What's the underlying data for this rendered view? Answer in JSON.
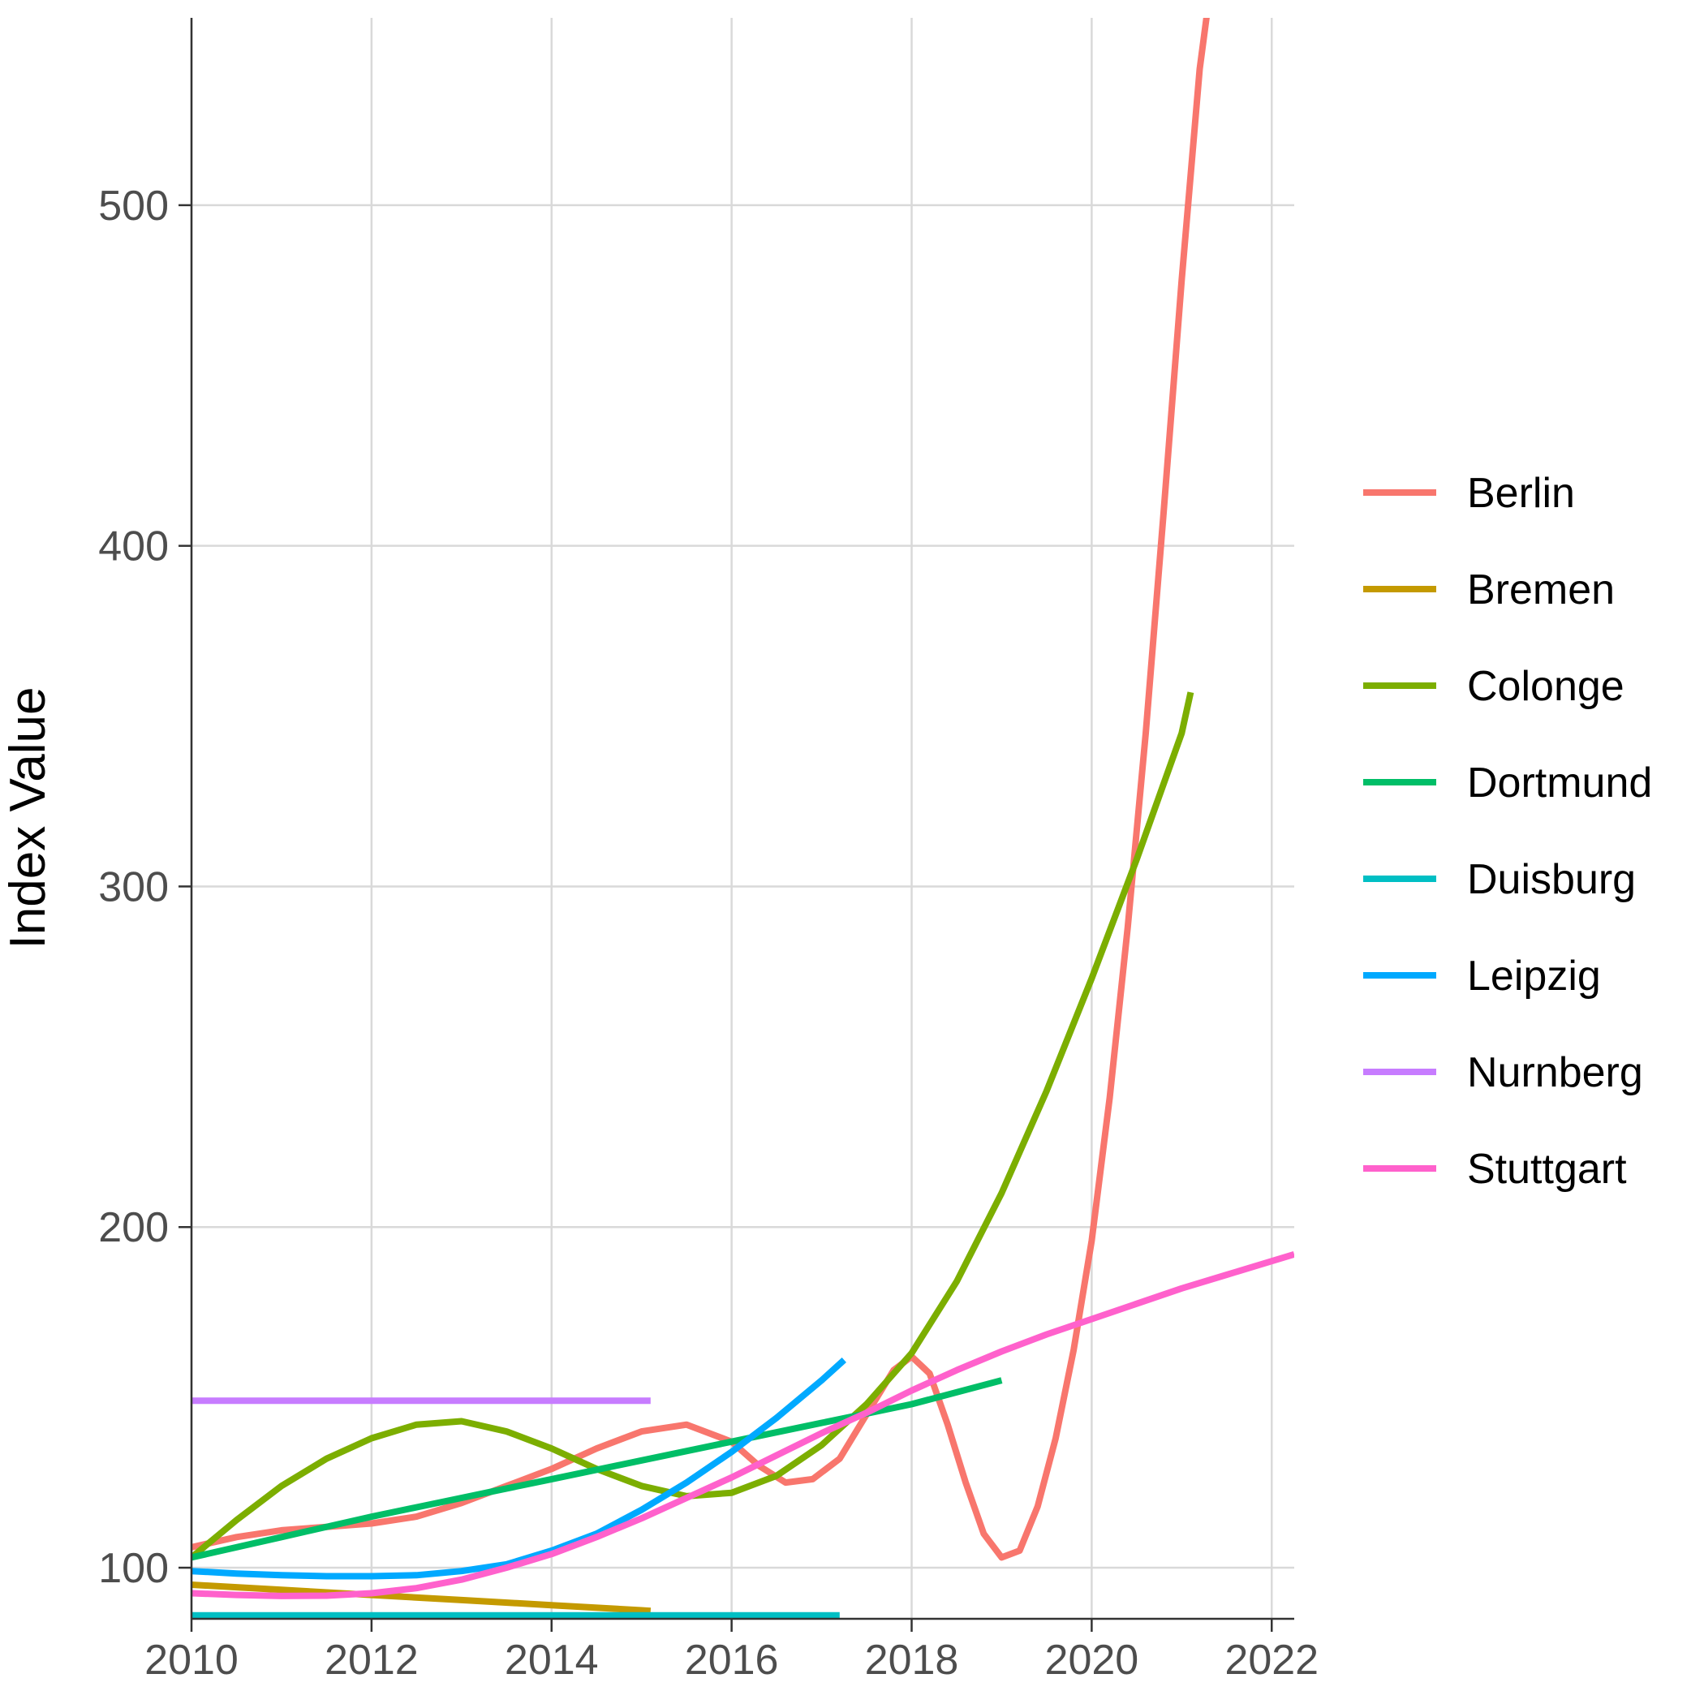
{
  "chart_data": {
    "type": "line",
    "title": "",
    "xlabel": "",
    "ylabel": "Index Value",
    "xlim": [
      2010,
      2022.25
    ],
    "ylim": [
      85,
      555
    ],
    "x_ticks": [
      2010,
      2012,
      2014,
      2016,
      2018,
      2020,
      2022
    ],
    "y_ticks": [
      100,
      200,
      300,
      400,
      500
    ],
    "grid": true,
    "legend_position": "right",
    "series": [
      {
        "name": "Berlin",
        "color": "#F8766D",
        "x": [
          2010,
          2010.5,
          2011,
          2011.5,
          2012,
          2012.5,
          2013,
          2013.5,
          2014,
          2014.5,
          2015,
          2015.5,
          2016,
          2016.3,
          2016.6,
          2016.9,
          2017.2,
          2017.5,
          2017.8,
          2018,
          2018.2,
          2018.4,
          2018.6,
          2018.8,
          2019,
          2019.2,
          2019.4,
          2019.6,
          2019.8,
          2020,
          2020.2,
          2020.4,
          2020.6,
          2020.8,
          2021,
          2021.2,
          2021.3
        ],
        "y": [
          106,
          109,
          111,
          112,
          113,
          115,
          119,
          124,
          129,
          135,
          140,
          142,
          137,
          130,
          125,
          126,
          132,
          145,
          158,
          162,
          157,
          142,
          125,
          110,
          103,
          105,
          118,
          138,
          164,
          196,
          238,
          288,
          345,
          410,
          478,
          540,
          560
        ]
      },
      {
        "name": "Bremen",
        "color": "#C49A00",
        "x": [
          2010,
          2011,
          2012,
          2013,
          2014,
          2015,
          2015.1
        ],
        "y": [
          95,
          93.5,
          92,
          90.5,
          89,
          87.5,
          87.3
        ]
      },
      {
        "name": "Colonge",
        "color": "#7CAE00",
        "x": [
          2010,
          2010.5,
          2011,
          2011.5,
          2012,
          2012.5,
          2013,
          2013.5,
          2014,
          2014.5,
          2015,
          2015.5,
          2016,
          2016.5,
          2017,
          2017.5,
          2018,
          2018.5,
          2019,
          2019.5,
          2020,
          2020.5,
          2021,
          2021.1
        ],
        "y": [
          103,
          114,
          124,
          132,
          138,
          142,
          143,
          140,
          135,
          129,
          124,
          121,
          122,
          127,
          136,
          148,
          163,
          184,
          210,
          240,
          273,
          308,
          345,
          357
        ]
      },
      {
        "name": "Dortmund",
        "color": "#00BE67",
        "x": [
          2010,
          2011,
          2012,
          2013,
          2014,
          2015,
          2016,
          2017,
          2018,
          2019
        ],
        "y": [
          103,
          109,
          115,
          120.5,
          126,
          131.5,
          137,
          142.5,
          148,
          155
        ]
      },
      {
        "name": "Duisburg",
        "color": "#00BFC4",
        "x": [
          2010,
          2012,
          2014,
          2016,
          2017.2
        ],
        "y": [
          86,
          86,
          86,
          86,
          86
        ]
      },
      {
        "name": "Leipzig",
        "color": "#00A9FF",
        "x": [
          2010,
          2010.5,
          2011,
          2011.5,
          2012,
          2012.5,
          2013,
          2013.5,
          2014,
          2014.5,
          2015,
          2015.5,
          2016,
          2016.5,
          2017,
          2017.25
        ],
        "y": [
          99,
          98.3,
          97.8,
          97.5,
          97.5,
          97.8,
          99,
          101,
          105,
          110,
          117,
          125,
          134,
          144,
          155,
          161
        ]
      },
      {
        "name": "Nurnberg",
        "color": "#C77CFF",
        "x": [
          2010,
          2015.1
        ],
        "y": [
          149,
          149
        ]
      },
      {
        "name": "Stuttgart",
        "color": "#FF61CC",
        "x": [
          2010,
          2010.5,
          2011,
          2011.5,
          2012,
          2012.5,
          2013,
          2013.5,
          2014,
          2014.5,
          2015,
          2015.5,
          2016,
          2016.5,
          2017,
          2017.5,
          2018,
          2018.5,
          2019,
          2019.5,
          2020,
          2020.5,
          2021,
          2021.5,
          2022,
          2022.25
        ],
        "y": [
          92.5,
          92,
          91.7,
          91.8,
          92.5,
          94,
          96.5,
          100,
          104,
          109,
          114.5,
          120.5,
          126.5,
          133,
          139.5,
          145.5,
          152,
          158,
          163.5,
          168.5,
          173,
          177.5,
          182,
          186,
          190,
          192
        ]
      }
    ]
  }
}
